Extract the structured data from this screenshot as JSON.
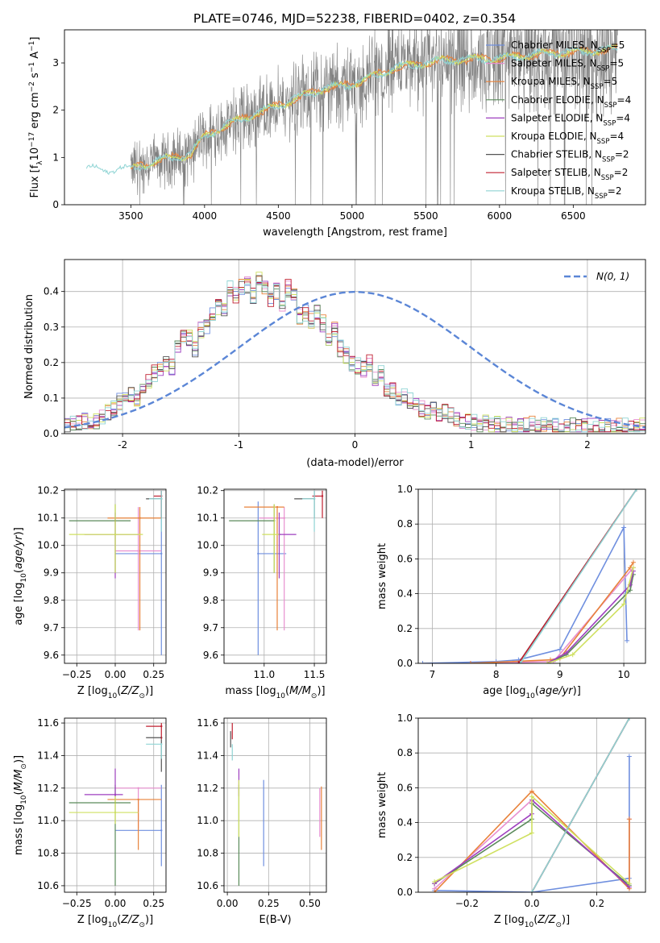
{
  "title": "PLATE=0746, MJD=52238, FIBERID=0402, z=0.354",
  "colors": {
    "Chabrier MILES": "#6f8fdf",
    "Salpeter MILES": "#e88fcf",
    "Kroupa MILES": "#e8823a",
    "Chabrier ELODIE": "#5a8a5a",
    "Salpeter ELODIE": "#9e3fbf",
    "Kroupa ELODIE": "#cfe060",
    "Chabrier STELIB": "#555555",
    "Salpeter STELIB": "#c02030",
    "Kroupa STELIB": "#8fd4d4",
    "spectrum": "#808080",
    "normal": "#5b86d6"
  },
  "legend": [
    {
      "label": "Chabrier MILES, N",
      "sub": "SSP",
      "tail": "=5",
      "model": "Chabrier MILES"
    },
    {
      "label": "Salpeter MILES, N",
      "sub": "SSP",
      "tail": "=5",
      "model": "Salpeter MILES"
    },
    {
      "label": "Kroupa MILES, N",
      "sub": "SSP",
      "tail": "=5",
      "model": "Kroupa MILES"
    },
    {
      "label": "Chabrier ELODIE, N",
      "sub": "SSP",
      "tail": "=4",
      "model": "Chabrier ELODIE"
    },
    {
      "label": "Salpeter ELODIE, N",
      "sub": "SSP",
      "tail": "=4",
      "model": "Salpeter ELODIE"
    },
    {
      "label": "Kroupa ELODIE, N",
      "sub": "SSP",
      "tail": "=4",
      "model": "Kroupa ELODIE"
    },
    {
      "label": "Chabrier STELIB, N",
      "sub": "SSP",
      "tail": "=2",
      "model": "Chabrier STELIB"
    },
    {
      "label": "Salpeter STELIB, N",
      "sub": "SSP",
      "tail": "=2",
      "model": "Salpeter STELIB"
    },
    {
      "label": "Kroupa STELIB, N",
      "sub": "SSP",
      "tail": "=2",
      "model": "Kroupa STELIB"
    }
  ],
  "normal_legend": "N(0, 1)",
  "chart_data": [
    {
      "id": "spectrum",
      "type": "line",
      "xlabel": "wavelength [Angstrom, rest frame]",
      "ylabel": "Flux [f_λ 10^-17 erg cm^-2 s^-1 A^-1]",
      "xlim": [
        3050,
        6990
      ],
      "ylim": [
        0,
        3.7
      ],
      "xticks": [
        3500,
        4000,
        4500,
        5000,
        5500,
        6000,
        6500
      ],
      "yticks": [
        0,
        1,
        2,
        3
      ],
      "models_blue_start": 3200,
      "data_start": 3500,
      "continuum": [
        [
          3200,
          0.75
        ],
        [
          3500,
          0.75
        ],
        [
          3700,
          0.95
        ],
        [
          3900,
          1.05
        ],
        [
          4000,
          1.45
        ],
        [
          4200,
          1.75
        ],
        [
          4500,
          2.1
        ],
        [
          4800,
          2.45
        ],
        [
          5000,
          2.55
        ],
        [
          5300,
          2.9
        ],
        [
          5600,
          3.05
        ],
        [
          6000,
          3.1
        ],
        [
          6300,
          3.2
        ],
        [
          6600,
          3.25
        ],
        [
          6800,
          3.3
        ]
      ]
    },
    {
      "id": "residuals",
      "type": "area",
      "xlabel": "(data-model)/error",
      "ylabel": "Normed distribution",
      "xlim": [
        -2.5,
        2.5
      ],
      "ylim": [
        0,
        0.49
      ],
      "xticks": [
        -2,
        -1,
        0,
        1,
        2
      ],
      "yticks": [
        0,
        0.1,
        0.2,
        0.3,
        0.4
      ],
      "bin_width": 0.1,
      "bins_from": -2.5,
      "base_hist": [
        0.02,
        0.025,
        0.03,
        0.035,
        0.03,
        0.035,
        0.05,
        0.06,
        0.07,
        0.09,
        0.1,
        0.11,
        0.1,
        0.13,
        0.15,
        0.17,
        0.18,
        0.2,
        0.19,
        0.24,
        0.28,
        0.27,
        0.24,
        0.29,
        0.3,
        0.33,
        0.36,
        0.35,
        0.41,
        0.39,
        0.41,
        0.42,
        0.39,
        0.43,
        0.41,
        0.38,
        0.4,
        0.35,
        0.41,
        0.4,
        0.33,
        0.34,
        0.32,
        0.34,
        0.31,
        0.27,
        0.29,
        0.24,
        0.22,
        0.2,
        0.19,
        0.18,
        0.2,
        0.16,
        0.17,
        0.13,
        0.12,
        0.1,
        0.11,
        0.09,
        0.08,
        0.07,
        0.06,
        0.07,
        0.05,
        0.06,
        0.05,
        0.04,
        0.03,
        0.035,
        0.03,
        0.025,
        0.03,
        0.02,
        0.025,
        0.02,
        0.025,
        0.02,
        0.02,
        0.02,
        0.025,
        0.02,
        0.03,
        0.02,
        0.025,
        0.02,
        0.02,
        0.02,
        0.025,
        0.02,
        0.02,
        0.02,
        0.02,
        0.02,
        0.02,
        0.02,
        0.02,
        0.02,
        0.02,
        0.02
      ]
    },
    {
      "id": "age_vs_Z",
      "type": "scatter",
      "xlabel": "Z [log10(Z/Z⊙)]",
      "ylabel": "age [log10(age/yr)]",
      "xlim": [
        -0.33,
        0.33
      ],
      "ylim": [
        9.57,
        10.205
      ],
      "xticks": [
        -0.25,
        0.0,
        0.25
      ],
      "xtick_labels": [
        "−0.25",
        "0.00",
        "0.25"
      ],
      "yticks": [
        9.6,
        9.7,
        9.8,
        9.9,
        10.0,
        10.1,
        10.2
      ],
      "points": [
        {
          "m": "Chabrier MILES",
          "x": 0.3,
          "xe": [
            0.0,
            0.3
          ],
          "y": 9.97,
          "ye": [
            9.6,
            10.16
          ]
        },
        {
          "m": "Salpeter MILES",
          "x": 0.15,
          "xe": [
            0.0,
            0.3
          ],
          "y": 9.98,
          "ye": [
            9.69,
            10.14
          ]
        },
        {
          "m": "Kroupa MILES",
          "x": 0.16,
          "xe": [
            -0.05,
            0.3
          ],
          "y": 10.1,
          "ye": [
            9.69,
            10.14
          ]
        },
        {
          "m": "Chabrier ELODIE",
          "x": 0.0,
          "xe": [
            -0.3,
            0.1
          ],
          "y": 10.09,
          "ye": [
            9.9,
            10.15
          ]
        },
        {
          "m": "Salpeter ELODIE",
          "x": 0.0,
          "xe": [
            -0.2,
            0.15
          ],
          "y": 10.04,
          "ye": [
            9.88,
            10.12
          ]
        },
        {
          "m": "Kroupa ELODIE",
          "x": 0.0,
          "xe": [
            -0.3,
            0.18
          ],
          "y": 10.04,
          "ye": [
            9.9,
            10.15
          ]
        },
        {
          "m": "Chabrier STELIB",
          "x": 0.3,
          "xe": [
            0.2,
            0.3
          ],
          "y": 10.17,
          "ye": [
            10.1,
            10.2
          ]
        },
        {
          "m": "Salpeter STELIB",
          "x": 0.3,
          "xe": [
            0.25,
            0.3
          ],
          "y": 10.18,
          "ye": [
            10.1,
            10.2
          ]
        },
        {
          "m": "Kroupa STELIB",
          "x": 0.3,
          "xe": [
            0.22,
            0.3
          ],
          "y": 10.17,
          "ye": [
            10.05,
            10.2
          ]
        }
      ]
    },
    {
      "id": "age_vs_mass",
      "type": "scatter",
      "xlabel": "mass [log10(M/M⊙)]",
      "ylabel": "",
      "xlim": [
        10.6,
        11.62
      ],
      "ylim": [
        9.57,
        10.205
      ],
      "xticks": [
        11.0,
        11.5
      ],
      "xtick_labels": [
        "11.0",
        "11.5"
      ],
      "yticks": [
        9.6,
        9.7,
        9.8,
        9.9,
        10.0,
        10.1,
        10.2
      ],
      "points": [
        {
          "m": "Chabrier MILES",
          "x": 10.94,
          "xe": [
            10.94,
            11.22
          ],
          "y": 9.97,
          "ye": [
            9.6,
            10.16
          ]
        },
        {
          "m": "Salpeter MILES",
          "x": 11.2,
          "xe": [
            10.95,
            11.2
          ],
          "y": 10.1,
          "ye": [
            9.69,
            10.14
          ]
        },
        {
          "m": "Kroupa MILES",
          "x": 11.13,
          "xe": [
            10.8,
            11.2
          ],
          "y": 10.14,
          "ye": [
            9.69,
            10.14
          ]
        },
        {
          "m": "Chabrier ELODIE",
          "x": 11.1,
          "xe": [
            10.65,
            11.1
          ],
          "y": 10.09,
          "ye": [
            9.9,
            10.15
          ]
        },
        {
          "m": "Salpeter ELODIE",
          "x": 11.15,
          "xe": [
            11.15,
            11.32
          ],
          "y": 10.04,
          "ye": [
            9.88,
            10.12
          ]
        },
        {
          "m": "Kroupa ELODIE",
          "x": 11.1,
          "xe": [
            10.98,
            11.15
          ],
          "y": 10.04,
          "ye": [
            9.9,
            10.15
          ]
        },
        {
          "m": "Chabrier STELIB",
          "x": 11.5,
          "xe": [
            11.3,
            11.5
          ],
          "y": 10.17,
          "ye": [
            10.1,
            10.2
          ]
        },
        {
          "m": "Salpeter STELIB",
          "x": 11.58,
          "xe": [
            11.48,
            11.58
          ],
          "y": 10.18,
          "ye": [
            10.1,
            10.2
          ]
        },
        {
          "m": "Kroupa STELIB",
          "x": 11.5,
          "xe": [
            11.38,
            11.5
          ],
          "y": 10.17,
          "ye": [
            10.05,
            10.2
          ]
        }
      ]
    },
    {
      "id": "mass_weight_vs_age",
      "type": "line",
      "xlabel": "age [log10(age/yr)]",
      "ylabel": "mass weight",
      "xlim": [
        6.78,
        10.34
      ],
      "ylim": [
        0,
        1.0
      ],
      "xticks": [
        7,
        8,
        9,
        10
      ],
      "yticks": [
        0,
        0.2,
        0.4,
        0.6,
        0.8,
        1.0
      ],
      "series": [
        {
          "m": "Chabrier MILES",
          "x": [
            6.85,
            8.0,
            8.35,
            9.0,
            10.0,
            10.05
          ],
          "y": [
            0.0,
            0.01,
            0.02,
            0.08,
            0.78,
            0.13
          ]
        },
        {
          "m": "Salpeter MILES",
          "x": [
            7.6,
            8.9,
            10.15
          ],
          "y": [
            0.0,
            0.01,
            0.55
          ]
        },
        {
          "m": "Kroupa MILES",
          "x": [
            7.6,
            8.85,
            9.0,
            10.1,
            10.15
          ],
          "y": [
            0.0,
            0.02,
            0.03,
            0.55,
            0.58
          ]
        },
        {
          "m": "Chabrier ELODIE",
          "x": [
            8.8,
            9.1,
            10.1,
            10.15
          ],
          "y": [
            0.0,
            0.05,
            0.42,
            0.51
          ]
        },
        {
          "m": "Salpeter ELODIE",
          "x": [
            8.8,
            9.1,
            10.1,
            10.15
          ],
          "y": [
            0.0,
            0.06,
            0.45,
            0.53
          ]
        },
        {
          "m": "Kroupa ELODIE",
          "x": [
            8.8,
            9.2,
            10.0,
            10.15
          ],
          "y": [
            0.0,
            0.05,
            0.34,
            0.55
          ]
        },
        {
          "m": "Chabrier STELIB",
          "x": [
            8.35,
            10.2
          ],
          "y": [
            0.0,
            1.0
          ]
        },
        {
          "m": "Salpeter STELIB",
          "x": [
            8.35,
            10.2
          ],
          "y": [
            0.0,
            1.0
          ]
        },
        {
          "m": "Kroupa STELIB",
          "x": [
            8.38,
            10.2
          ],
          "y": [
            0.0,
            1.0
          ]
        }
      ]
    },
    {
      "id": "mass_vs_Z",
      "type": "scatter",
      "xlabel": "Z [log10(Z/Z⊙)]",
      "ylabel": "mass [log10(M/M⊙)]",
      "xlim": [
        -0.33,
        0.33
      ],
      "ylim": [
        10.56,
        11.63
      ],
      "xticks": [
        -0.25,
        0.0,
        0.25
      ],
      "xtick_labels": [
        "−0.25",
        "0.00",
        "0.25"
      ],
      "yticks": [
        10.6,
        10.8,
        11.0,
        11.2,
        11.4,
        11.6
      ],
      "points": [
        {
          "m": "Chabrier MILES",
          "x": 0.3,
          "xe": [
            0.0,
            0.3
          ],
          "y": 10.94,
          "ye": [
            10.72,
            11.22
          ]
        },
        {
          "m": "Salpeter MILES",
          "x": 0.15,
          "xe": [
            0.0,
            0.3
          ],
          "y": 11.2,
          "ye": [
            10.95,
            11.2
          ]
        },
        {
          "m": "Kroupa MILES",
          "x": 0.15,
          "xe": [
            -0.05,
            0.3
          ],
          "y": 11.13,
          "ye": [
            10.82,
            11.13
          ]
        },
        {
          "m": "Chabrier ELODIE",
          "x": 0.0,
          "xe": [
            -0.3,
            0.1
          ],
          "y": 11.11,
          "ye": [
            10.6,
            11.22
          ]
        },
        {
          "m": "Salpeter ELODIE",
          "x": 0.0,
          "xe": [
            -0.2,
            0.05
          ],
          "y": 11.16,
          "ye": [
            11.15,
            11.32
          ]
        },
        {
          "m": "Kroupa ELODIE",
          "x": 0.0,
          "xe": [
            -0.3,
            0.15
          ],
          "y": 11.05,
          "ye": [
            10.98,
            11.15
          ]
        },
        {
          "m": "Chabrier STELIB",
          "x": 0.3,
          "xe": [
            0.2,
            0.3
          ],
          "y": 11.51,
          "ye": [
            11.3,
            11.5
          ]
        },
        {
          "m": "Salpeter STELIB",
          "x": 0.3,
          "xe": [
            0.2,
            0.3
          ],
          "y": 11.58,
          "ye": [
            11.5,
            11.6
          ]
        },
        {
          "m": "Kroupa STELIB",
          "x": 0.3,
          "xe": [
            0.2,
            0.3
          ],
          "y": 11.47,
          "ye": [
            11.38,
            11.47
          ]
        }
      ]
    },
    {
      "id": "mass_vs_EBV",
      "type": "scatter",
      "xlabel": "E(B-V)",
      "ylabel": "",
      "xlim": [
        -0.02,
        0.6
      ],
      "ylim": [
        10.56,
        11.63
      ],
      "xticks": [
        0.0,
        0.25,
        0.5
      ],
      "xtick_labels": [
        "0.00",
        "0.25",
        "0.50"
      ],
      "yticks": [
        10.6,
        10.8,
        11.0,
        11.2,
        11.4,
        11.6
      ],
      "points": [
        {
          "m": "Chabrier MILES",
          "x": 0.22,
          "y": 11.0,
          "ye": [
            10.72,
            11.25
          ]
        },
        {
          "m": "Salpeter MILES",
          "x": 0.56,
          "y": 11.0,
          "ye": [
            10.9,
            11.2
          ]
        },
        {
          "m": "Kroupa MILES",
          "x": 0.57,
          "y": 11.0,
          "ye": [
            10.82,
            11.21
          ]
        },
        {
          "m": "Chabrier ELODIE",
          "x": 0.07,
          "y": 11.0,
          "ye": [
            10.6,
            11.22
          ]
        },
        {
          "m": "Salpeter ELODIE",
          "x": 0.07,
          "y": 11.2,
          "ye": [
            11.15,
            11.32
          ]
        },
        {
          "m": "Kroupa ELODIE",
          "x": 0.07,
          "y": 11.05,
          "ye": [
            10.9,
            11.25
          ]
        },
        {
          "m": "Chabrier STELIB",
          "x": 0.02,
          "y": 11.5,
          "ye": [
            11.45,
            11.55
          ]
        },
        {
          "m": "Salpeter STELIB",
          "x": 0.03,
          "y": 11.55,
          "ye": [
            11.5,
            11.6
          ]
        },
        {
          "m": "Kroupa STELIB",
          "x": 0.03,
          "y": 11.4,
          "ye": [
            11.37,
            11.47
          ]
        }
      ]
    },
    {
      "id": "mass_weight_vs_Z",
      "type": "line",
      "xlabel": "Z [log10(Z/Z⊙)]",
      "ylabel": "mass weight",
      "xlim": [
        -0.35,
        0.35
      ],
      "ylim": [
        0,
        1.0
      ],
      "xticks": [
        -0.2,
        0.0,
        0.2
      ],
      "xtick_labels": [
        "−0.2",
        "0.0",
        "0.2"
      ],
      "yticks": [
        0,
        0.2,
        0.4,
        0.6,
        0.8,
        1.0
      ],
      "series": [
        {
          "m": "Chabrier MILES",
          "x": [
            -0.3,
            0.0,
            0.3,
            0.3
          ],
          "y": [
            0.01,
            0.0,
            0.08,
            0.78
          ]
        },
        {
          "m": "Salpeter MILES",
          "x": [
            -0.3,
            0.0,
            0.3,
            0.3
          ],
          "y": [
            0.02,
            0.53,
            0.03,
            0.42
          ]
        },
        {
          "m": "Kroupa MILES",
          "x": [
            -0.3,
            0.0,
            0.3,
            0.3
          ],
          "y": [
            0.0,
            0.58,
            0.02,
            0.42
          ]
        },
        {
          "m": "Chabrier ELODIE",
          "x": [
            -0.3,
            0.0,
            0.0,
            0.3
          ],
          "y": [
            0.05,
            0.42,
            0.51,
            0.04
          ]
        },
        {
          "m": "Salpeter ELODIE",
          "x": [
            -0.3,
            0.0,
            0.0,
            0.3
          ],
          "y": [
            0.05,
            0.45,
            0.53,
            0.03
          ]
        },
        {
          "m": "Kroupa ELODIE",
          "x": [
            -0.3,
            0.0,
            0.0,
            0.3
          ],
          "y": [
            0.06,
            0.34,
            0.55,
            0.05
          ]
        },
        {
          "m": "Chabrier STELIB",
          "x": [
            0.0,
            0.3
          ],
          "y": [
            0.0,
            1.0
          ]
        },
        {
          "m": "Salpeter STELIB",
          "x": [
            0.0,
            0.3
          ],
          "y": [
            0.0,
            1.0
          ]
        },
        {
          "m": "Kroupa STELIB",
          "x": [
            0.0,
            0.3
          ],
          "y": [
            0.0,
            1.0
          ]
        }
      ]
    }
  ]
}
